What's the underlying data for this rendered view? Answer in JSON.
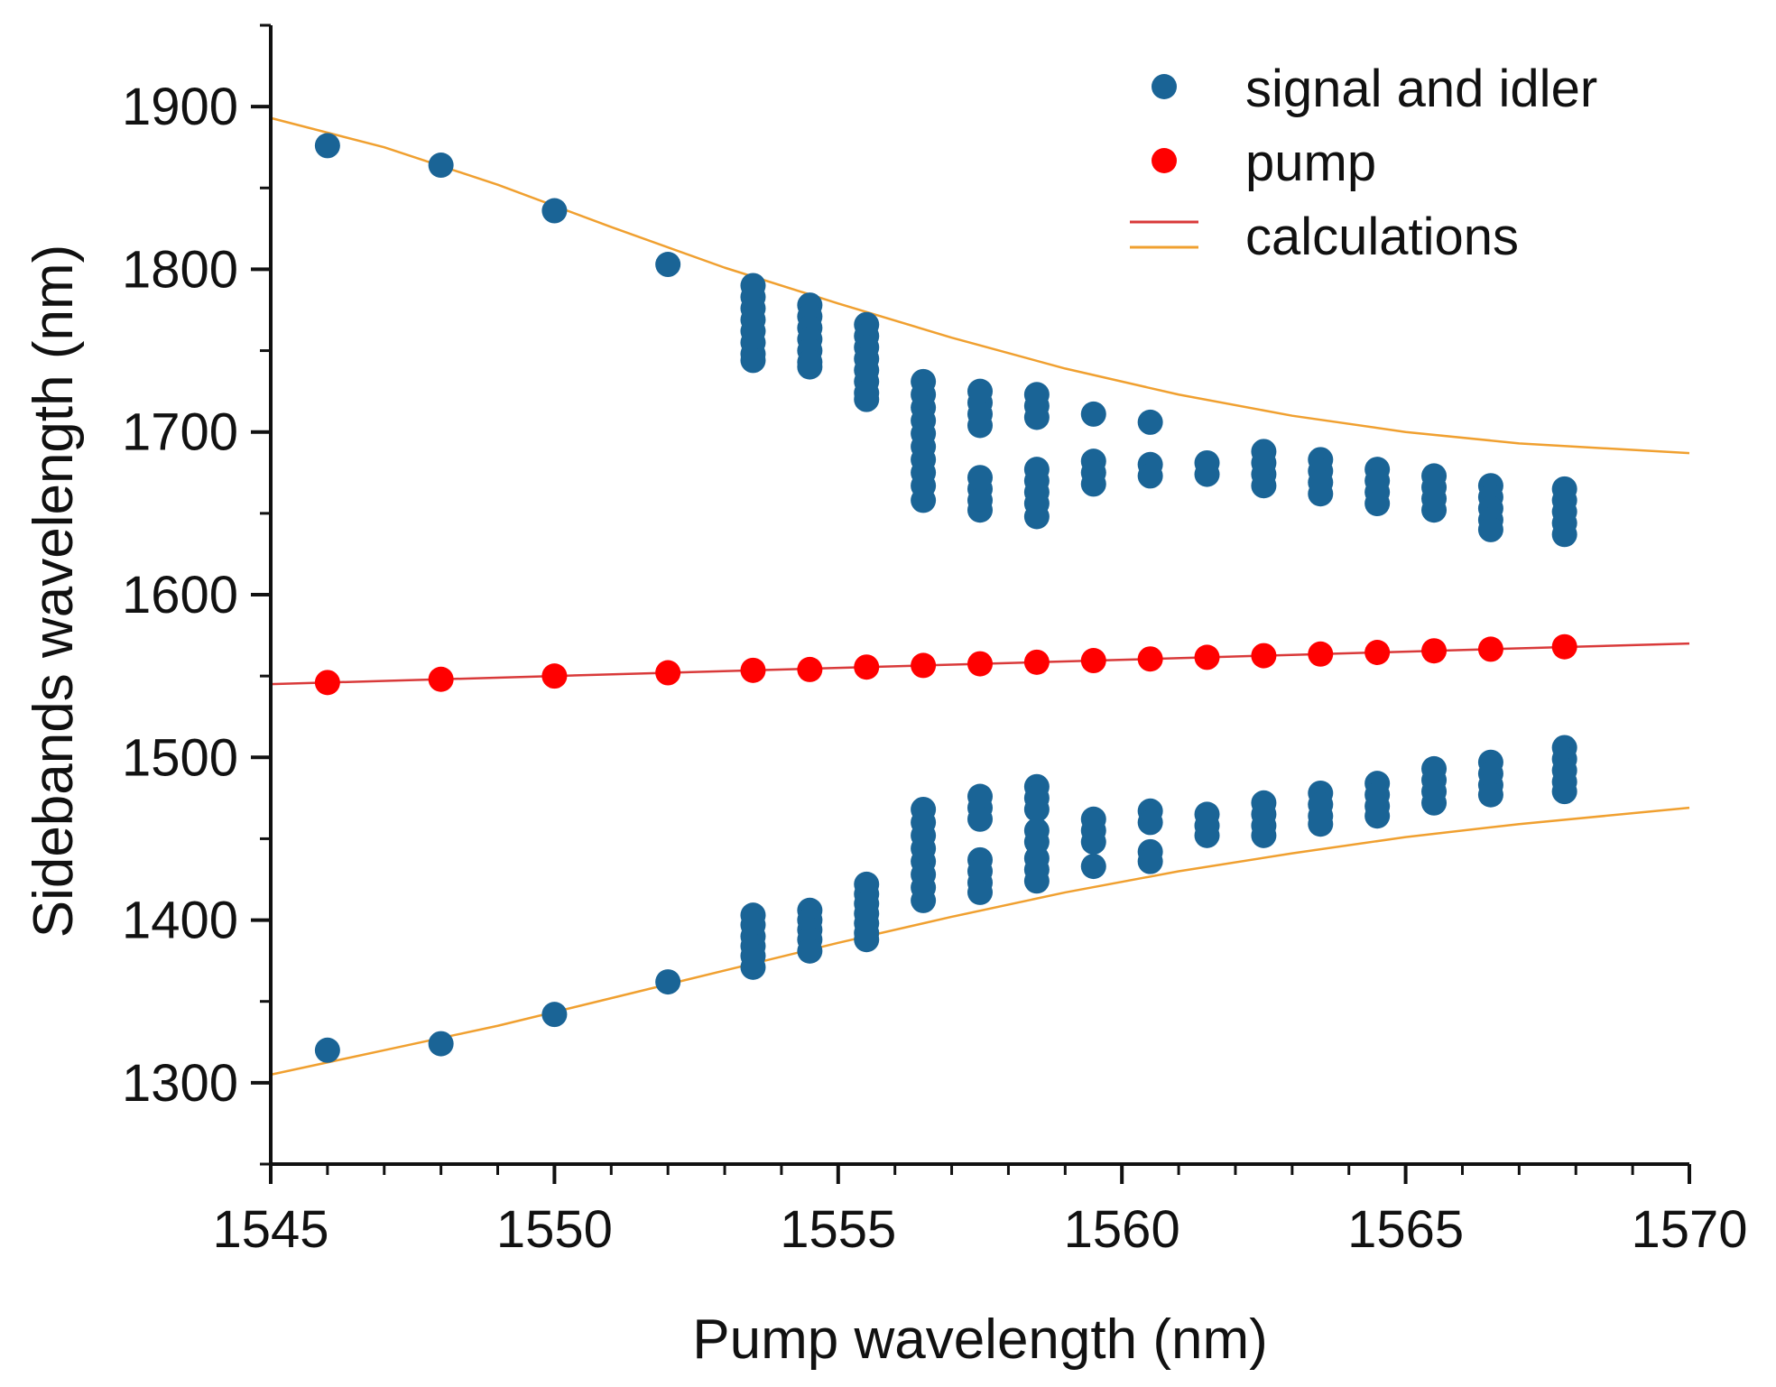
{
  "chart_data": {
    "type": "scatter",
    "title": "",
    "xlabel": "Pump wavelength (nm)",
    "ylabel": "Sidebands wavelength (nm)",
    "xlim": [
      1545,
      1570
    ],
    "ylim": [
      1250,
      1950
    ],
    "x_ticks": [
      1545,
      1550,
      1555,
      1560,
      1565,
      1570
    ],
    "y_ticks": [
      1300,
      1400,
      1500,
      1600,
      1700,
      1800,
      1900
    ],
    "x_tick_labels": [
      "1545",
      "1550",
      "1555",
      "1560",
      "1565",
      "1570"
    ],
    "y_tick_labels": [
      "1300",
      "1400",
      "1500",
      "1600",
      "1700",
      "1800",
      "1900"
    ],
    "grid": false,
    "legend_position": "top-right",
    "colors": {
      "signal_idler": "#1a6496",
      "pump": "#ff0000",
      "calc_pump": "#d93a3a",
      "calc_sidebands": "#f0a030",
      "axis": "#111111"
    },
    "legend": [
      {
        "label": "signal and idler",
        "kind": "marker",
        "color": "#1a6496"
      },
      {
        "label": "pump",
        "kind": "marker",
        "color": "#ff0000"
      },
      {
        "label": "calculations",
        "kind": "lines",
        "colors": [
          "#d93a3a",
          "#f0a030"
        ]
      }
    ],
    "series": [
      {
        "name": "signal and idler",
        "kind": "scatter",
        "color": "#1a6496",
        "points": [
          [
            1546,
            1876
          ],
          [
            1546,
            1320
          ],
          [
            1548,
            1864
          ],
          [
            1548,
            1324
          ],
          [
            1550,
            1836
          ],
          [
            1550,
            1342
          ],
          [
            1552,
            1803
          ],
          [
            1552,
            1362
          ],
          [
            1553.5,
            1790
          ],
          [
            1553.5,
            1783
          ],
          [
            1553.5,
            1776
          ],
          [
            1553.5,
            1769
          ],
          [
            1553.5,
            1762
          ],
          [
            1553.5,
            1755
          ],
          [
            1553.5,
            1748
          ],
          [
            1553.5,
            1744
          ],
          [
            1553.5,
            1403
          ],
          [
            1553.5,
            1397
          ],
          [
            1553.5,
            1390
          ],
          [
            1553.5,
            1384
          ],
          [
            1553.5,
            1378
          ],
          [
            1553.5,
            1371
          ],
          [
            1554.5,
            1778
          ],
          [
            1554.5,
            1771
          ],
          [
            1554.5,
            1764
          ],
          [
            1554.5,
            1757
          ],
          [
            1554.5,
            1750
          ],
          [
            1554.5,
            1743
          ],
          [
            1554.5,
            1740
          ],
          [
            1554.5,
            1406
          ],
          [
            1554.5,
            1400
          ],
          [
            1554.5,
            1394
          ],
          [
            1554.5,
            1388
          ],
          [
            1554.5,
            1381
          ],
          [
            1555.5,
            1766
          ],
          [
            1555.5,
            1759
          ],
          [
            1555.5,
            1752
          ],
          [
            1555.5,
            1745
          ],
          [
            1555.5,
            1738
          ],
          [
            1555.5,
            1731
          ],
          [
            1555.5,
            1724
          ],
          [
            1555.5,
            1720
          ],
          [
            1555.5,
            1422
          ],
          [
            1555.5,
            1416
          ],
          [
            1555.5,
            1410
          ],
          [
            1555.5,
            1404
          ],
          [
            1555.5,
            1398
          ],
          [
            1555.5,
            1392
          ],
          [
            1555.5,
            1388
          ],
          [
            1556.5,
            1731
          ],
          [
            1556.5,
            1723
          ],
          [
            1556.5,
            1715
          ],
          [
            1556.5,
            1707
          ],
          [
            1556.5,
            1699
          ],
          [
            1556.5,
            1691
          ],
          [
            1556.5,
            1683
          ],
          [
            1556.5,
            1675
          ],
          [
            1556.5,
            1667
          ],
          [
            1556.5,
            1658
          ],
          [
            1556.5,
            1468
          ],
          [
            1556.5,
            1460
          ],
          [
            1556.5,
            1452
          ],
          [
            1556.5,
            1444
          ],
          [
            1556.5,
            1436
          ],
          [
            1556.5,
            1428
          ],
          [
            1556.5,
            1420
          ],
          [
            1556.5,
            1412
          ],
          [
            1557.5,
            1725
          ],
          [
            1557.5,
            1718
          ],
          [
            1557.5,
            1711
          ],
          [
            1557.5,
            1704
          ],
          [
            1557.5,
            1672
          ],
          [
            1557.5,
            1665
          ],
          [
            1557.5,
            1658
          ],
          [
            1557.5,
            1652
          ],
          [
            1557.5,
            1476
          ],
          [
            1557.5,
            1469
          ],
          [
            1557.5,
            1462
          ],
          [
            1557.5,
            1437
          ],
          [
            1557.5,
            1430
          ],
          [
            1557.5,
            1423
          ],
          [
            1557.5,
            1417
          ],
          [
            1558.5,
            1723
          ],
          [
            1558.5,
            1716
          ],
          [
            1558.5,
            1709
          ],
          [
            1558.5,
            1677
          ],
          [
            1558.5,
            1670
          ],
          [
            1558.5,
            1663
          ],
          [
            1558.5,
            1656
          ],
          [
            1558.5,
            1648
          ],
          [
            1558.5,
            1482
          ],
          [
            1558.5,
            1475
          ],
          [
            1558.5,
            1468
          ],
          [
            1558.5,
            1455
          ],
          [
            1558.5,
            1448
          ],
          [
            1558.5,
            1438
          ],
          [
            1558.5,
            1431
          ],
          [
            1558.5,
            1424
          ],
          [
            1559.5,
            1711
          ],
          [
            1559.5,
            1682
          ],
          [
            1559.5,
            1675
          ],
          [
            1559.5,
            1668
          ],
          [
            1559.5,
            1462
          ],
          [
            1559.5,
            1455
          ],
          [
            1559.5,
            1448
          ],
          [
            1559.5,
            1433
          ],
          [
            1560.5,
            1706
          ],
          [
            1560.5,
            1680
          ],
          [
            1560.5,
            1673
          ],
          [
            1560.5,
            1467
          ],
          [
            1560.5,
            1460
          ],
          [
            1560.5,
            1442
          ],
          [
            1560.5,
            1436
          ],
          [
            1561.5,
            1681
          ],
          [
            1561.5,
            1674
          ],
          [
            1561.5,
            1465
          ],
          [
            1561.5,
            1458
          ],
          [
            1561.5,
            1452
          ],
          [
            1562.5,
            1688
          ],
          [
            1562.5,
            1681
          ],
          [
            1562.5,
            1674
          ],
          [
            1562.5,
            1667
          ],
          [
            1562.5,
            1472
          ],
          [
            1562.5,
            1465
          ],
          [
            1562.5,
            1458
          ],
          [
            1562.5,
            1452
          ],
          [
            1563.5,
            1683
          ],
          [
            1563.5,
            1676
          ],
          [
            1563.5,
            1669
          ],
          [
            1563.5,
            1662
          ],
          [
            1563.5,
            1478
          ],
          [
            1563.5,
            1471
          ],
          [
            1563.5,
            1464
          ],
          [
            1563.5,
            1459
          ],
          [
            1564.5,
            1677
          ],
          [
            1564.5,
            1670
          ],
          [
            1564.5,
            1663
          ],
          [
            1564.5,
            1656
          ],
          [
            1564.5,
            1484
          ],
          [
            1564.5,
            1477
          ],
          [
            1564.5,
            1470
          ],
          [
            1564.5,
            1464
          ],
          [
            1565.5,
            1673
          ],
          [
            1565.5,
            1666
          ],
          [
            1565.5,
            1659
          ],
          [
            1565.5,
            1652
          ],
          [
            1565.5,
            1493
          ],
          [
            1565.5,
            1486
          ],
          [
            1565.5,
            1479
          ],
          [
            1565.5,
            1472
          ],
          [
            1566.5,
            1667
          ],
          [
            1566.5,
            1660
          ],
          [
            1566.5,
            1653
          ],
          [
            1566.5,
            1646
          ],
          [
            1566.5,
            1640
          ],
          [
            1566.5,
            1497
          ],
          [
            1566.5,
            1490
          ],
          [
            1566.5,
            1483
          ],
          [
            1566.5,
            1477
          ],
          [
            1567.8,
            1665
          ],
          [
            1567.8,
            1658
          ],
          [
            1567.8,
            1651
          ],
          [
            1567.8,
            1644
          ],
          [
            1567.8,
            1637
          ],
          [
            1567.8,
            1506
          ],
          [
            1567.8,
            1499
          ],
          [
            1567.8,
            1492
          ],
          [
            1567.8,
            1485
          ],
          [
            1567.8,
            1479
          ]
        ]
      },
      {
        "name": "pump",
        "kind": "scatter",
        "color": "#ff0000",
        "points": [
          [
            1546,
            1546
          ],
          [
            1548,
            1548
          ],
          [
            1550,
            1550
          ],
          [
            1552,
            1552
          ],
          [
            1553.5,
            1553.5
          ],
          [
            1554.5,
            1554
          ],
          [
            1555.5,
            1555.5
          ],
          [
            1556.5,
            1556.5
          ],
          [
            1557.5,
            1557.5
          ],
          [
            1558.5,
            1558.5
          ],
          [
            1559.5,
            1559.5
          ],
          [
            1560.5,
            1560.5
          ],
          [
            1561.5,
            1561.5
          ],
          [
            1562.5,
            1562.5
          ],
          [
            1563.5,
            1563.5
          ],
          [
            1564.5,
            1564.5
          ],
          [
            1565.5,
            1565.5
          ],
          [
            1566.5,
            1566.5
          ],
          [
            1567.8,
            1568
          ]
        ]
      },
      {
        "name": "calculations (pump)",
        "kind": "line",
        "color": "#d93a3a",
        "x": [
          1545,
          1570
        ],
        "y": [
          1545,
          1570
        ]
      },
      {
        "name": "calculations (signal)",
        "kind": "line",
        "color": "#f0a030",
        "x": [
          1545,
          1547,
          1549,
          1551,
          1553,
          1555,
          1557,
          1559,
          1561,
          1563,
          1565,
          1567,
          1570
        ],
        "y": [
          1893,
          1875,
          1852,
          1826,
          1801,
          1779,
          1758,
          1739,
          1723,
          1710,
          1700,
          1693,
          1687
        ]
      },
      {
        "name": "calculations (idler)",
        "kind": "line",
        "color": "#f0a030",
        "x": [
          1545,
          1547,
          1549,
          1551,
          1553,
          1555,
          1557,
          1559,
          1561,
          1563,
          1565,
          1567,
          1570
        ],
        "y": [
          1305,
          1320,
          1335,
          1352,
          1369,
          1386,
          1402,
          1417,
          1430,
          1441,
          1451,
          1459,
          1469
        ]
      }
    ]
  }
}
